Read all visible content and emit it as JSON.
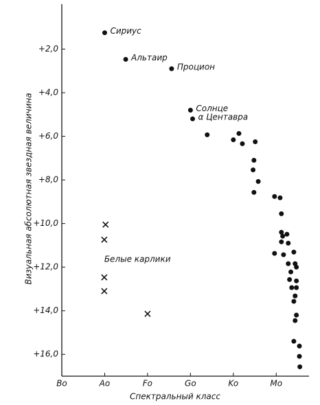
{
  "chart_data": {
    "type": "scatter",
    "x_label": "Спектральный класс",
    "y_label": "Визуальная абсолютная звездная величина",
    "xlim": [
      0,
      5.7
    ],
    "ylim": [
      17,
      0
    ],
    "xticks": [
      {
        "value": 0,
        "label": "Bo"
      },
      {
        "value": 1,
        "label": "Ao"
      },
      {
        "value": 2,
        "label": "Fo"
      },
      {
        "value": 3,
        "label": "Go"
      },
      {
        "value": 4,
        "label": "Ko"
      },
      {
        "value": 5,
        "label": "Mo"
      }
    ],
    "yticks": [
      {
        "value": 2,
        "label": "+2,0"
      },
      {
        "value": 4,
        "label": "+4,0"
      },
      {
        "value": 6,
        "label": "+6,0"
      },
      {
        "value": 8,
        "label": "+8,0"
      },
      {
        "value": 10,
        "label": "+10,0"
      },
      {
        "value": 12,
        "label": "+12,0"
      },
      {
        "value": 14,
        "label": "+14,0"
      },
      {
        "value": 16,
        "label": "+16,0"
      }
    ],
    "color": "#111111",
    "series": [
      {
        "marker": "dot",
        "x": [
          1.0,
          1.49,
          2.56,
          3.0,
          3.05
        ],
        "y": [
          1.25,
          2.47,
          2.9,
          4.8,
          5.2
        ],
        "labels": [
          "Сириус",
          "Альтаир",
          "Процион",
          "Солнце",
          "α Центавра"
        ]
      },
      {
        "marker": "dot",
        "x": [
          3.39,
          4.0,
          4.13,
          4.21,
          4.51,
          4.48,
          4.46,
          4.58,
          4.48,
          4.96,
          5.09,
          5.12,
          5.12,
          5.15,
          5.25,
          5.12,
          5.28,
          4.96,
          5.17,
          5.41,
          5.28,
          5.44,
          5.34,
          5.47,
          5.31,
          5.47,
          5.36,
          5.47,
          5.44,
          5.41,
          5.47,
          5.44,
          5.41,
          5.54,
          5.54,
          5.55
        ],
        "y": [
          5.93,
          6.16,
          5.87,
          6.34,
          6.25,
          7.1,
          7.54,
          8.07,
          8.57,
          8.76,
          8.82,
          9.55,
          10.4,
          10.58,
          10.49,
          10.84,
          10.9,
          11.37,
          11.43,
          11.31,
          11.84,
          11.84,
          12.22,
          12.0,
          12.57,
          12.63,
          12.94,
          12.94,
          13.32,
          13.57,
          14.2,
          14.45,
          15.4,
          15.62,
          16.09,
          16.57
        ]
      },
      {
        "name": "Белые карлики",
        "marker": "cross",
        "x": [
          1.02,
          0.99,
          0.99,
          0.99,
          2.0
        ],
        "y": [
          10.05,
          10.74,
          12.47,
          13.1,
          14.14
        ]
      }
    ]
  }
}
